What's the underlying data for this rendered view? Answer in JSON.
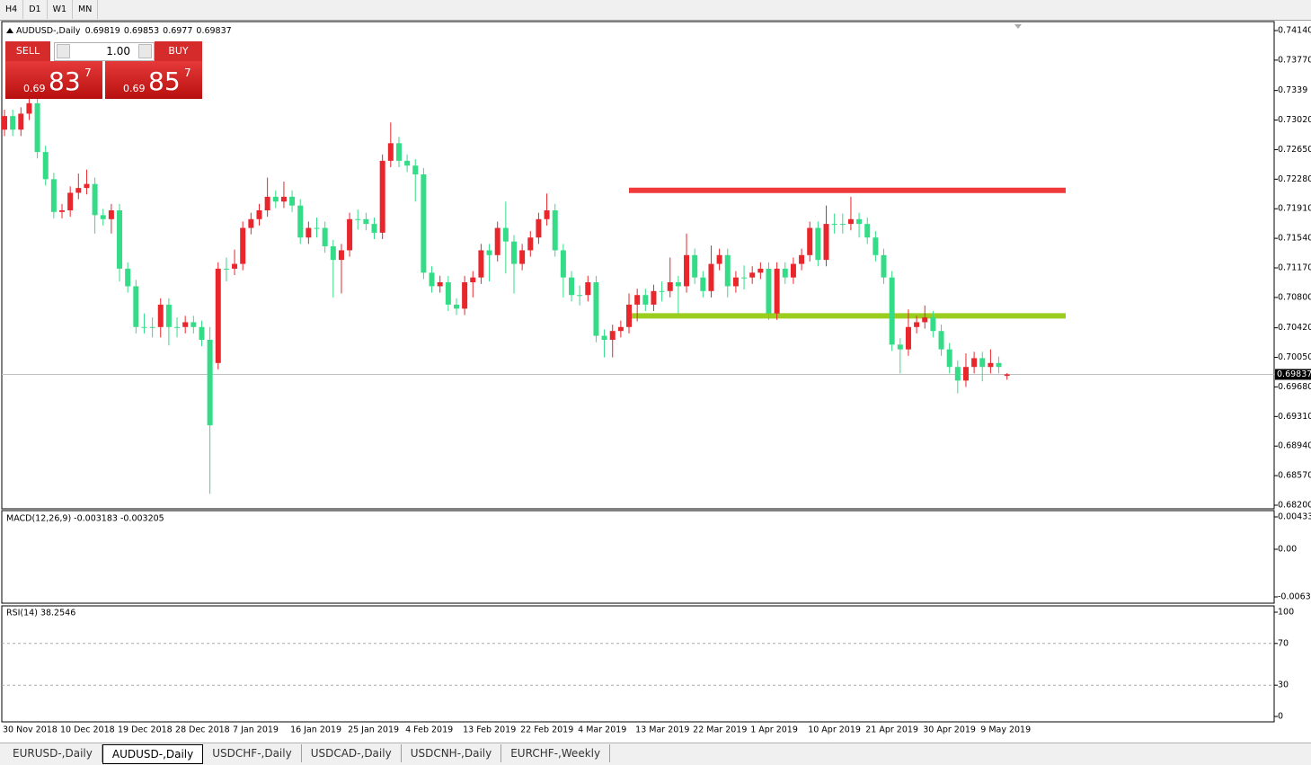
{
  "toolbar": {
    "timeframes": [
      "H4",
      "D1",
      "W1",
      "MN"
    ]
  },
  "trade_panel": {
    "sell": "SELL",
    "buy": "BUY",
    "lots": "1.00",
    "bid": {
      "prefix": "0.69",
      "big": "83",
      "pip": "7"
    },
    "ask": {
      "prefix": "0.69",
      "big": "85",
      "pip": "7"
    }
  },
  "chart_data": {
    "type": "candlestick",
    "title": "AUDUSD-,Daily",
    "categories": [
      "30 Nov 2018",
      null,
      null,
      null,
      null,
      null,
      null,
      "10 Dec 2018",
      null,
      null,
      null,
      null,
      null,
      null,
      "19 Dec 2018",
      null,
      null,
      null,
      null,
      null,
      null,
      "28 Dec 2018",
      null,
      null,
      null,
      null,
      null,
      null,
      "7 Jan 2019",
      null,
      null,
      null,
      null,
      null,
      null,
      "16 Jan 2019",
      null,
      null,
      null,
      null,
      null,
      null,
      "25 Jan 2019",
      null,
      null,
      null,
      null,
      null,
      null,
      "4 Feb 2019",
      null,
      null,
      null,
      null,
      null,
      null,
      "13 Feb 2019",
      null,
      null,
      null,
      null,
      null,
      null,
      "22 Feb 2019",
      null,
      null,
      null,
      null,
      null,
      null,
      "4 Mar 2019",
      null,
      null,
      null,
      null,
      null,
      null,
      "13 Mar 2019",
      null,
      null,
      null,
      null,
      null,
      null,
      "22 Mar 2019",
      null,
      null,
      null,
      null,
      null,
      null,
      "1 Apr 2019",
      null,
      null,
      null,
      null,
      null,
      null,
      "10 Apr 2019",
      null,
      null,
      null,
      null,
      null,
      null,
      "21 Apr 2019",
      null,
      null,
      null,
      null,
      null,
      null,
      "30 Apr 2019",
      null,
      null,
      null,
      null,
      null,
      null,
      "9 May 2019",
      null,
      null,
      null
    ],
    "open": [
      0.729,
      0.7307,
      0.729,
      0.731,
      0.7323,
      0.7262,
      0.7228,
      0.7187,
      0.7189,
      0.7211,
      0.7217,
      0.7222,
      0.7183,
      0.7178,
      0.7189,
      0.7116,
      0.7094,
      0.7043,
      0.7043,
      0.7043,
      0.7071,
      0.7043,
      0.7043,
      0.7049,
      0.7043,
      0.7027,
      0.6998,
      0.7116,
      0.7116,
      0.7122,
      0.7167,
      0.7178,
      0.7189,
      0.7206,
      0.72,
      0.7206,
      0.7195,
      0.7155,
      0.7167,
      0.7167,
      0.7144,
      0.7127,
      0.7139,
      0.7178,
      0.7178,
      0.7172,
      0.7161,
      0.7251,
      0.7273,
      0.7251,
      0.7245,
      0.7234,
      0.7111,
      0.7094,
      0.7099,
      0.7071,
      0.7066,
      0.7099,
      0.7105,
      0.7139,
      0.7133,
      0.7167,
      0.715,
      0.7122,
      0.7139,
      0.7155,
      0.7178,
      0.7189,
      0.7139,
      0.7105,
      0.7083,
      0.7083,
      0.7099,
      0.7032,
      0.7027,
      0.7038,
      0.7043,
      0.7071,
      0.7083,
      0.7071,
      0.7088,
      0.7088,
      0.7099,
      0.7094,
      0.7133,
      0.7105,
      0.7088,
      0.7122,
      0.7133,
      0.7094,
      0.7105,
      0.7105,
      0.7111,
      0.7116,
      0.706,
      0.7116,
      0.7105,
      0.7122,
      0.7133,
      0.7167,
      0.7127,
      0.7172,
      0.7172,
      0.7172,
      0.7178,
      0.7172,
      0.7155,
      0.7133,
      0.7105,
      0.7021,
      0.7015,
      0.7043,
      0.7049,
      0.7055,
      0.7038,
      0.7015,
      0.6993,
      0.6976,
      0.6993,
      0.7004,
      0.6993,
      0.6998,
      0.69819
    ],
    "high": [
      0.7315,
      0.7315,
      0.7318,
      0.7331,
      0.7331,
      0.727,
      0.7236,
      0.7197,
      0.7219,
      0.7235,
      0.724,
      0.723,
      0.7191,
      0.7197,
      0.7197,
      0.7124,
      0.7102,
      0.706,
      0.7055,
      0.7079,
      0.7079,
      0.7055,
      0.7057,
      0.7057,
      0.7051,
      0.7043,
      0.7124,
      0.713,
      0.714,
      0.7175,
      0.7186,
      0.7197,
      0.723,
      0.7214,
      0.7225,
      0.7214,
      0.7203,
      0.7175,
      0.718,
      0.7175,
      0.7152,
      0.7147,
      0.7186,
      0.719,
      0.7186,
      0.718,
      0.7259,
      0.7299,
      0.7281,
      0.7259,
      0.7253,
      0.7242,
      0.7119,
      0.7107,
      0.7107,
      0.7079,
      0.7107,
      0.7113,
      0.7147,
      0.7147,
      0.7175,
      0.72,
      0.7158,
      0.7147,
      0.7163,
      0.7186,
      0.721,
      0.7197,
      0.7147,
      0.7113,
      0.7095,
      0.7107,
      0.7107,
      0.704,
      0.7046,
      0.7051,
      0.7085,
      0.7091,
      0.7091,
      0.7096,
      0.71,
      0.713,
      0.7107,
      0.716,
      0.7141,
      0.7113,
      0.7145,
      0.7141,
      0.7141,
      0.7113,
      0.712,
      0.7119,
      0.7124,
      0.7124,
      0.7124,
      0.7124,
      0.713,
      0.7141,
      0.7175,
      0.7175,
      0.7195,
      0.7185,
      0.7185,
      0.7206,
      0.7186,
      0.718,
      0.7163,
      0.7141,
      0.7113,
      0.7029,
      0.7065,
      0.7057,
      0.707,
      0.7063,
      0.7046,
      0.7023,
      0.7001,
      0.701,
      0.7012,
      0.7012,
      0.7015,
      0.7006,
      0.69853
    ],
    "low": [
      0.7282,
      0.7282,
      0.7282,
      0.7302,
      0.7254,
      0.722,
      0.7179,
      0.7179,
      0.7181,
      0.7203,
      0.7209,
      0.716,
      0.717,
      0.716,
      0.71,
      0.7086,
      0.7035,
      0.7035,
      0.703,
      0.703,
      0.702,
      0.703,
      0.7035,
      0.7035,
      0.7019,
      0.6834,
      0.699,
      0.71,
      0.7108,
      0.7114,
      0.7159,
      0.717,
      0.7181,
      0.7192,
      0.7192,
      0.7187,
      0.7147,
      0.7147,
      0.7155,
      0.7136,
      0.708,
      0.7085,
      0.7131,
      0.7165,
      0.7164,
      0.7153,
      0.7153,
      0.7243,
      0.7243,
      0.7237,
      0.72,
      0.7103,
      0.7086,
      0.7086,
      0.7063,
      0.7058,
      0.7058,
      0.708,
      0.7097,
      0.71,
      0.7125,
      0.711,
      0.7085,
      0.7114,
      0.7131,
      0.7147,
      0.717,
      0.7131,
      0.708,
      0.7075,
      0.707,
      0.7075,
      0.7024,
      0.7005,
      0.7005,
      0.703,
      0.7035,
      0.705,
      0.7063,
      0.7063,
      0.7075,
      0.708,
      0.706,
      0.7086,
      0.7097,
      0.708,
      0.708,
      0.7114,
      0.708,
      0.7086,
      0.709,
      0.7097,
      0.7103,
      0.7052,
      0.7052,
      0.7097,
      0.7097,
      0.7114,
      0.7125,
      0.7119,
      0.7119,
      0.716,
      0.716,
      0.7164,
      0.7155,
      0.7147,
      0.7125,
      0.7097,
      0.7013,
      0.6985,
      0.7007,
      0.7035,
      0.7041,
      0.703,
      0.7007,
      0.6985,
      0.696,
      0.6968,
      0.6985,
      0.6975,
      0.6985,
      0.6985,
      0.6977
    ],
    "close": [
      0.7307,
      0.729,
      0.731,
      0.7323,
      0.7262,
      0.7228,
      0.7187,
      0.7189,
      0.7211,
      0.7217,
      0.7222,
      0.7183,
      0.7178,
      0.7189,
      0.7116,
      0.7094,
      0.7043,
      0.7043,
      0.7043,
      0.7071,
      0.7043,
      0.7043,
      0.7049,
      0.7043,
      0.7027,
      0.692,
      0.7116,
      0.7116,
      0.7122,
      0.7167,
      0.7178,
      0.7189,
      0.7206,
      0.72,
      0.7206,
      0.7195,
      0.7155,
      0.7167,
      0.7167,
      0.7144,
      0.7127,
      0.7139,
      0.7178,
      0.7178,
      0.7172,
      0.7161,
      0.7251,
      0.7273,
      0.7251,
      0.7245,
      0.7234,
      0.7111,
      0.7094,
      0.7099,
      0.7071,
      0.7066,
      0.7099,
      0.7105,
      0.7139,
      0.7133,
      0.7167,
      0.715,
      0.7122,
      0.7139,
      0.7155,
      0.7178,
      0.7189,
      0.7139,
      0.7105,
      0.7083,
      0.7083,
      0.7099,
      0.7032,
      0.7027,
      0.7038,
      0.7043,
      0.7071,
      0.7083,
      0.7071,
      0.7088,
      0.7088,
      0.7099,
      0.7094,
      0.7133,
      0.7105,
      0.7088,
      0.7122,
      0.7133,
      0.7094,
      0.7105,
      0.7105,
      0.7111,
      0.7116,
      0.706,
      0.7116,
      0.7105,
      0.7122,
      0.7133,
      0.7167,
      0.7127,
      0.7172,
      0.7172,
      0.7172,
      0.7178,
      0.7172,
      0.7155,
      0.7133,
      0.7105,
      0.7021,
      0.7015,
      0.7043,
      0.7049,
      0.7055,
      0.7038,
      0.7015,
      0.6993,
      0.6976,
      0.6993,
      0.7004,
      0.6993,
      0.6998,
      0.6993,
      0.69837
    ],
    "up_color": "#e8262b",
    "down_color": "#35dc87",
    "ylim": [
      0.682,
      0.7414
    ],
    "yticks": [
      {
        "value": 0.7414,
        "label": "0.74140"
      },
      {
        "value": 0.7377,
        "label": "0.73770"
      },
      0.7339,
      {
        "value": 0.7302,
        "label": "0.73020"
      },
      {
        "value": 0.7265,
        "label": "0.72650"
      },
      {
        "value": 0.7228,
        "label": "0.72280"
      },
      {
        "value": 0.7191,
        "label": "0.71910"
      },
      {
        "value": 0.7154,
        "label": "0.71540"
      },
      {
        "value": 0.7117,
        "label": "0.71170"
      },
      {
        "value": 0.708,
        "label": "0.70800"
      },
      {
        "value": 0.7042,
        "label": "0.70420"
      },
      {
        "value": 0.7005,
        "label": "0.70050"
      },
      {
        "value": 0.6968,
        "label": "0.69680"
      },
      {
        "value": 0.6931,
        "label": "0.69310"
      },
      {
        "value": 0.6894,
        "label": "0.68940"
      },
      {
        "value": 0.6857,
        "label": "0.68570"
      },
      {
        "value": 0.682,
        "label": "0.68200"
      }
    ],
    "levels": [
      {
        "value": 0.7214,
        "color": "#f0393a"
      },
      {
        "value": 0.7057,
        "color": "#9acd1e"
      }
    ]
  },
  "macd": {
    "label": "MACD(12,26,9) -0.003183 -0.003205",
    "ylim": [
      -0.006371,
      0.004331
    ],
    "yticks": [
      0.004331,
      {
        "value": 0,
        "label": "0.00"
      },
      -0.006371
    ]
  },
  "rsi": {
    "label": "RSI(14) 38.2546",
    "ylim": [
      0,
      100
    ],
    "yticks": [
      100,
      70,
      30,
      0
    ]
  },
  "tabs": [
    "EURUSD-,Daily",
    "AUDUSD-,Daily",
    "USDCHF-,Daily",
    "USDCAD-,Daily",
    "USDCNH-,Daily",
    "EURCHF-,Weekly"
  ],
  "active_tab": 1
}
